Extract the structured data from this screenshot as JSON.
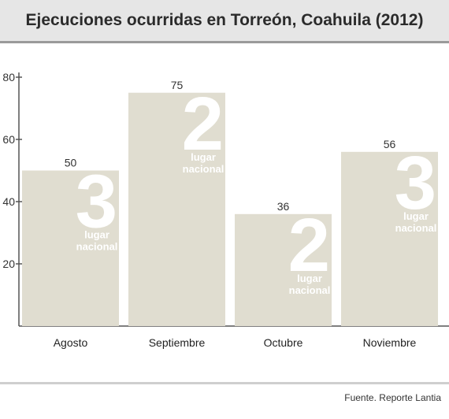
{
  "title": "Ejecuciones ocurridas en Torreón, Coahuila (2012)",
  "source": "Fuente. Reporte Lantia",
  "colors": {
    "bar": "#e0ddd0",
    "rank": "#ffffff",
    "axis": "#555555",
    "header_bg": "#e6e6e6"
  },
  "chart_data": {
    "type": "bar",
    "title": "Ejecuciones ocurridas en Torreón, Coahuila (2012)",
    "xlabel": "",
    "ylabel": "",
    "categories": [
      "Agosto",
      "Septiembre",
      "Octubre",
      "Noviembre"
    ],
    "values": [
      50,
      75,
      36,
      56
    ],
    "ranks": [
      "3",
      "2",
      "2",
      "3"
    ],
    "rank_label": [
      "lugar",
      "nacional"
    ],
    "ylim": [
      0,
      80
    ],
    "yticks": [
      20,
      40,
      60,
      80
    ],
    "grid": false,
    "legend": "none"
  }
}
